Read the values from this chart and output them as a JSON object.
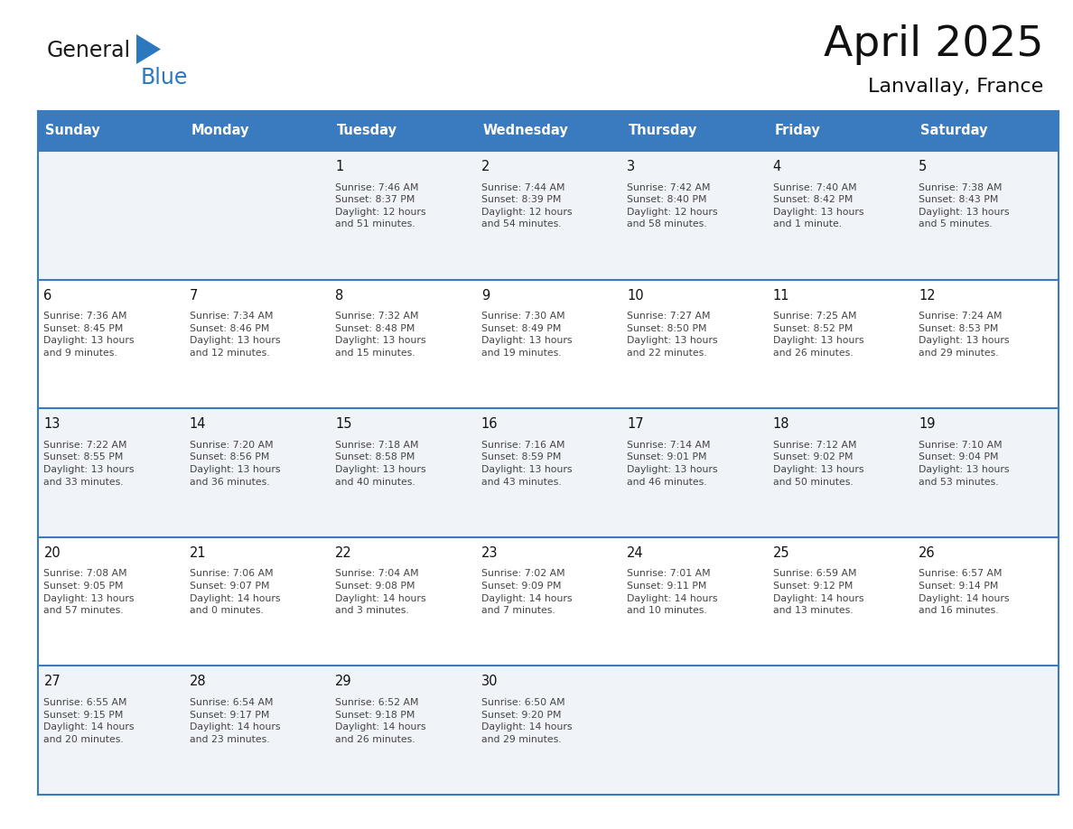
{
  "title": "April 2025",
  "subtitle": "Lanvallay, France",
  "header_bg": "#3a7bbf",
  "header_text": "#ffffff",
  "days_of_week": [
    "Sunday",
    "Monday",
    "Tuesday",
    "Wednesday",
    "Thursday",
    "Friday",
    "Saturday"
  ],
  "cell_bg_white": "#ffffff",
  "cell_bg_gray": "#f0f4f8",
  "cell_border": "#3a7bbf",
  "text_color": "#444444",
  "day_number_color": "#111111",
  "row_colors": [
    "#f0f4f8",
    "#ffffff",
    "#f0f4f8",
    "#ffffff",
    "#f0f4f8"
  ],
  "calendar": [
    [
      {
        "day": null,
        "info": null
      },
      {
        "day": null,
        "info": null
      },
      {
        "day": 1,
        "info": "Sunrise: 7:46 AM\nSunset: 8:37 PM\nDaylight: 12 hours\nand 51 minutes."
      },
      {
        "day": 2,
        "info": "Sunrise: 7:44 AM\nSunset: 8:39 PM\nDaylight: 12 hours\nand 54 minutes."
      },
      {
        "day": 3,
        "info": "Sunrise: 7:42 AM\nSunset: 8:40 PM\nDaylight: 12 hours\nand 58 minutes."
      },
      {
        "day": 4,
        "info": "Sunrise: 7:40 AM\nSunset: 8:42 PM\nDaylight: 13 hours\nand 1 minute."
      },
      {
        "day": 5,
        "info": "Sunrise: 7:38 AM\nSunset: 8:43 PM\nDaylight: 13 hours\nand 5 minutes."
      }
    ],
    [
      {
        "day": 6,
        "info": "Sunrise: 7:36 AM\nSunset: 8:45 PM\nDaylight: 13 hours\nand 9 minutes."
      },
      {
        "day": 7,
        "info": "Sunrise: 7:34 AM\nSunset: 8:46 PM\nDaylight: 13 hours\nand 12 minutes."
      },
      {
        "day": 8,
        "info": "Sunrise: 7:32 AM\nSunset: 8:48 PM\nDaylight: 13 hours\nand 15 minutes."
      },
      {
        "day": 9,
        "info": "Sunrise: 7:30 AM\nSunset: 8:49 PM\nDaylight: 13 hours\nand 19 minutes."
      },
      {
        "day": 10,
        "info": "Sunrise: 7:27 AM\nSunset: 8:50 PM\nDaylight: 13 hours\nand 22 minutes."
      },
      {
        "day": 11,
        "info": "Sunrise: 7:25 AM\nSunset: 8:52 PM\nDaylight: 13 hours\nand 26 minutes."
      },
      {
        "day": 12,
        "info": "Sunrise: 7:24 AM\nSunset: 8:53 PM\nDaylight: 13 hours\nand 29 minutes."
      }
    ],
    [
      {
        "day": 13,
        "info": "Sunrise: 7:22 AM\nSunset: 8:55 PM\nDaylight: 13 hours\nand 33 minutes."
      },
      {
        "day": 14,
        "info": "Sunrise: 7:20 AM\nSunset: 8:56 PM\nDaylight: 13 hours\nand 36 minutes."
      },
      {
        "day": 15,
        "info": "Sunrise: 7:18 AM\nSunset: 8:58 PM\nDaylight: 13 hours\nand 40 minutes."
      },
      {
        "day": 16,
        "info": "Sunrise: 7:16 AM\nSunset: 8:59 PM\nDaylight: 13 hours\nand 43 minutes."
      },
      {
        "day": 17,
        "info": "Sunrise: 7:14 AM\nSunset: 9:01 PM\nDaylight: 13 hours\nand 46 minutes."
      },
      {
        "day": 18,
        "info": "Sunrise: 7:12 AM\nSunset: 9:02 PM\nDaylight: 13 hours\nand 50 minutes."
      },
      {
        "day": 19,
        "info": "Sunrise: 7:10 AM\nSunset: 9:04 PM\nDaylight: 13 hours\nand 53 minutes."
      }
    ],
    [
      {
        "day": 20,
        "info": "Sunrise: 7:08 AM\nSunset: 9:05 PM\nDaylight: 13 hours\nand 57 minutes."
      },
      {
        "day": 21,
        "info": "Sunrise: 7:06 AM\nSunset: 9:07 PM\nDaylight: 14 hours\nand 0 minutes."
      },
      {
        "day": 22,
        "info": "Sunrise: 7:04 AM\nSunset: 9:08 PM\nDaylight: 14 hours\nand 3 minutes."
      },
      {
        "day": 23,
        "info": "Sunrise: 7:02 AM\nSunset: 9:09 PM\nDaylight: 14 hours\nand 7 minutes."
      },
      {
        "day": 24,
        "info": "Sunrise: 7:01 AM\nSunset: 9:11 PM\nDaylight: 14 hours\nand 10 minutes."
      },
      {
        "day": 25,
        "info": "Sunrise: 6:59 AM\nSunset: 9:12 PM\nDaylight: 14 hours\nand 13 minutes."
      },
      {
        "day": 26,
        "info": "Sunrise: 6:57 AM\nSunset: 9:14 PM\nDaylight: 14 hours\nand 16 minutes."
      }
    ],
    [
      {
        "day": 27,
        "info": "Sunrise: 6:55 AM\nSunset: 9:15 PM\nDaylight: 14 hours\nand 20 minutes."
      },
      {
        "day": 28,
        "info": "Sunrise: 6:54 AM\nSunset: 9:17 PM\nDaylight: 14 hours\nand 23 minutes."
      },
      {
        "day": 29,
        "info": "Sunrise: 6:52 AM\nSunset: 9:18 PM\nDaylight: 14 hours\nand 26 minutes."
      },
      {
        "day": 30,
        "info": "Sunrise: 6:50 AM\nSunset: 9:20 PM\nDaylight: 14 hours\nand 29 minutes."
      },
      {
        "day": null,
        "info": null
      },
      {
        "day": null,
        "info": null
      },
      {
        "day": null,
        "info": null
      }
    ]
  ],
  "logo_color_general": "#1a1a1a",
  "logo_color_blue": "#2b78be",
  "logo_triangle_color": "#2b78be"
}
